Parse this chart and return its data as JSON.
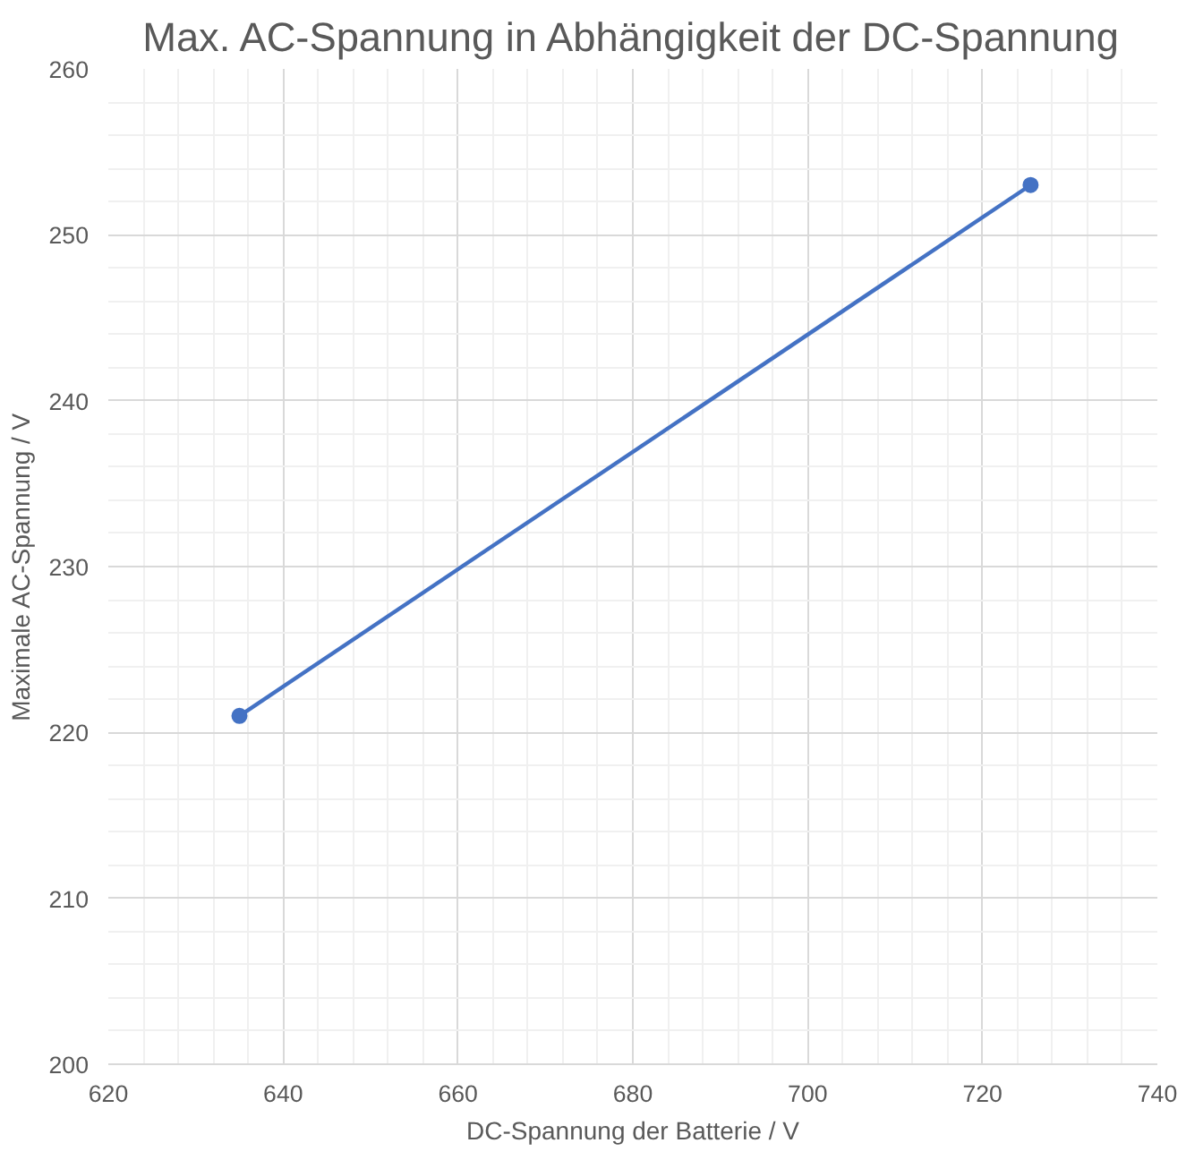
{
  "chart_data": {
    "type": "line",
    "title": "Max. AC-Spannung in Abhängigkeit der DC-Spannung",
    "xlabel": "DC-Spannung der Batterie / V",
    "ylabel": "Maximale AC-Spannung / V",
    "x": [
      635,
      725.5
    ],
    "series": [
      {
        "color": "#4472c4",
        "values": [
          221,
          253
        ]
      }
    ],
    "xlim": [
      620,
      740
    ],
    "xticks": [
      620,
      640,
      660,
      680,
      700,
      720,
      740
    ],
    "ylim": [
      200,
      260
    ],
    "yticks": [
      200,
      210,
      220,
      230,
      240,
      250,
      260
    ],
    "grid": true,
    "marker": "circle",
    "line_style": "solid"
  }
}
